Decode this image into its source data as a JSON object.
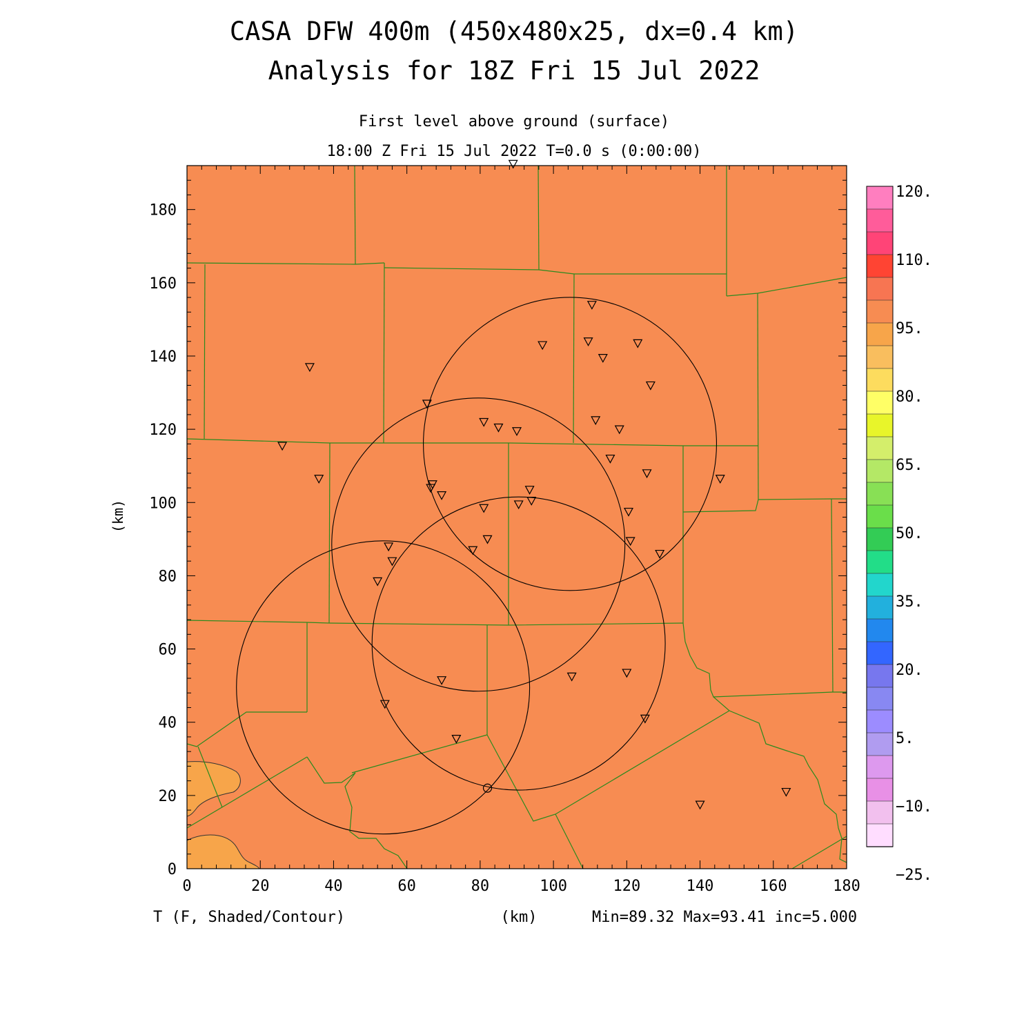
{
  "header": {
    "title_line1": "CASA DFW 400m (450x480x25, dx=0.4 km)",
    "title_line2": "Analysis for 18Z Fri 15 Jul 2022",
    "subtitle_line1": "First level above ground (surface)",
    "subtitle_line2": "18:00 Z Fri 15 Jul 2022    T=0.0 s (0:00:00)"
  },
  "footer": {
    "field_label": "T (F, Shaded/Contour)",
    "x_unit": "(km)",
    "stats": "Min=89.32 Max=93.41 inc=5.000"
  },
  "axes": {
    "ylabel": "(km)",
    "xlim": [
      0,
      180
    ],
    "ylim": [
      0,
      192
    ],
    "x_ticks": [
      "0",
      "20",
      "40",
      "60",
      "80",
      "100",
      "120",
      "140",
      "160",
      "180"
    ],
    "y_ticks": [
      "0",
      "20",
      "40",
      "60",
      "80",
      "100",
      "120",
      "140",
      "160",
      "180"
    ]
  },
  "colors": {
    "field_main": "#f78c52",
    "field_warm_low": "#f7a54a",
    "county_line": "#2a8a1e",
    "radar_ring": "#000000"
  },
  "colorbar": {
    "labels": [
      "120.",
      "110.",
      "95.",
      "80.",
      "65.",
      "50.",
      "35.",
      "20.",
      "5.",
      "−10.",
      "−25."
    ],
    "colors_top_to_bottom": [
      "#ff7ebf",
      "#ff5c9a",
      "#ff4477",
      "#ff4433",
      "#f77552",
      "#f78c52",
      "#f7a54a",
      "#f9be5e",
      "#fddc5e",
      "#ffff66",
      "#e8f52a",
      "#d4ee6b",
      "#b4e866",
      "#88e055",
      "#6ade4a",
      "#33cc55",
      "#22dd88",
      "#22d6cc",
      "#22b0dd",
      "#2288ee",
      "#3366ff",
      "#7777ee",
      "#8888f2",
      "#9c8cff",
      "#b09cf0",
      "#dd99ee",
      "#e890e6",
      "#f2c0ee",
      "#ffddff"
    ]
  },
  "radars": [
    {
      "cx": 53.5,
      "cy": 49.5,
      "r": 40
    },
    {
      "cx": 79.5,
      "cy": 88.5,
      "r": 40
    },
    {
      "cx": 90.5,
      "cy": 61.5,
      "r": 40
    },
    {
      "cx": 104.5,
      "cy": 116,
      "r": 40
    }
  ],
  "station_marker": {
    "x": 82,
    "y": 22
  },
  "stations": [
    [
      89,
      192.5
    ],
    [
      110.5,
      154
    ],
    [
      33.5,
      137
    ],
    [
      97,
      143
    ],
    [
      109.5,
      144
    ],
    [
      113.5,
      139.5
    ],
    [
      123,
      143.5
    ],
    [
      126.5,
      132
    ],
    [
      65.5,
      127
    ],
    [
      111.5,
      122.5
    ],
    [
      118,
      120
    ],
    [
      81,
      122
    ],
    [
      85,
      120.5
    ],
    [
      90,
      119.5
    ],
    [
      26,
      115.5
    ],
    [
      115.5,
      112
    ],
    [
      36,
      106.5
    ],
    [
      125.5,
      108
    ],
    [
      145.5,
      106.5
    ],
    [
      66.5,
      104
    ],
    [
      67,
      105
    ],
    [
      69.5,
      102
    ],
    [
      93.5,
      103.5
    ],
    [
      94,
      100.5
    ],
    [
      81,
      98.5
    ],
    [
      90.5,
      99.5
    ],
    [
      120.5,
      97.5
    ],
    [
      82,
      90
    ],
    [
      121,
      89.5
    ],
    [
      78,
      87
    ],
    [
      55,
      88
    ],
    [
      129,
      86
    ],
    [
      56,
      84
    ],
    [
      52,
      78.5
    ],
    [
      105,
      52.5
    ],
    [
      120,
      53.5
    ],
    [
      69.5,
      51.5
    ],
    [
      54,
      45
    ],
    [
      125,
      41
    ],
    [
      73.5,
      35.5
    ],
    [
      140,
      17.5
    ],
    [
      163.5,
      21
    ]
  ]
}
